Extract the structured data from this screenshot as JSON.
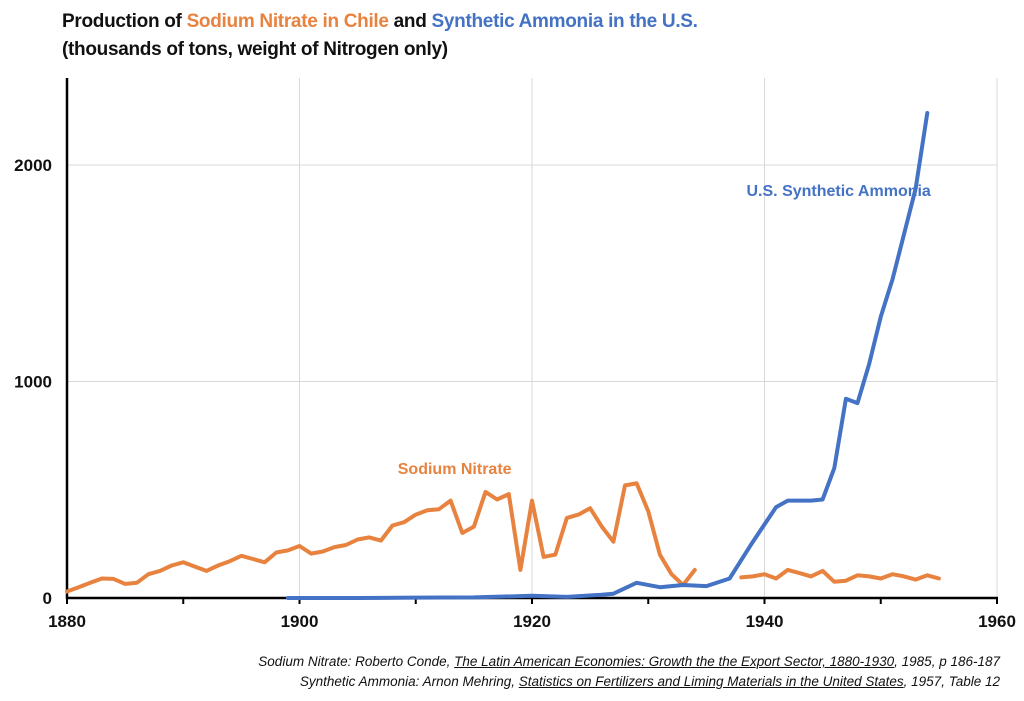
{
  "chart_data": {
    "type": "line",
    "title": {
      "prefix": "Production of ",
      "series1": "Sodium Nitrate in Chile",
      "middle": " and ",
      "series2": "Synthetic Ammonia in the U.S.",
      "subtitle": "(thousands of tons, weight of Nitrogen only)"
    },
    "xlabel": "",
    "ylabel": "",
    "xlim": [
      1880,
      1960
    ],
    "ylim": [
      0,
      2350
    ],
    "x_ticks": [
      1880,
      1900,
      1920,
      1940,
      1960
    ],
    "x_tick_labels": [
      "1880",
      "1900",
      "1920",
      "1940",
      "1960"
    ],
    "y_ticks": [
      0,
      1000,
      2000
    ],
    "y_tick_labels": [
      "0",
      "1000",
      "2000"
    ],
    "grid": true,
    "legend": "inline annotations",
    "series": [
      {
        "name": "Sodium Nitrate",
        "label": "Sodium Nitrate",
        "color": "#E8823F",
        "segments": [
          {
            "x": [
              1880,
              1881,
              1882,
              1883,
              1884,
              1885,
              1886,
              1887,
              1888,
              1889,
              1890,
              1891,
              1892,
              1893,
              1894,
              1895,
              1896,
              1897,
              1898,
              1899,
              1900,
              1901,
              1902,
              1903,
              1904,
              1905,
              1906,
              1907,
              1908,
              1909,
              1910,
              1911,
              1912,
              1913,
              1914,
              1915,
              1916,
              1917,
              1918,
              1919,
              1920,
              1921,
              1922,
              1923,
              1924,
              1925,
              1926,
              1927,
              1928,
              1929,
              1930,
              1931,
              1932,
              1933,
              1934
            ],
            "y": [
              30,
              50,
              70,
              90,
              88,
              65,
              70,
              110,
              125,
              150,
              165,
              145,
              125,
              150,
              170,
              195,
              180,
              165,
              210,
              220,
              240,
              205,
              215,
              235,
              245,
              270,
              280,
              265,
              335,
              350,
              385,
              405,
              410,
              450,
              300,
              330,
              490,
              455,
              480,
              130,
              450,
              190,
              200,
              370,
              385,
              415,
              330,
              260,
              520,
              530,
              400,
              200,
              110,
              60,
              130
            ]
          },
          {
            "x": [
              1938,
              1939,
              1940,
              1941,
              1942,
              1943,
              1944,
              1945,
              1946,
              1947,
              1948,
              1949,
              1950,
              1951,
              1952,
              1953,
              1954,
              1955
            ],
            "y": [
              95,
              100,
              110,
              90,
              130,
              115,
              100,
              125,
              75,
              80,
              105,
              100,
              90,
              110,
              100,
              85,
              105,
              90
            ]
          }
        ]
      },
      {
        "name": "U.S. Synthetic Ammonia",
        "label": "U.S. Synthetic Ammonia",
        "color": "#4472C4",
        "segments": [
          {
            "x": [
              1899,
              1905,
              1910,
              1915,
              1920,
              1923,
              1926,
              1927,
              1929,
              1931,
              1933,
              1935,
              1937,
              1939,
              1941,
              1942,
              1943,
              1944,
              1945,
              1946,
              1947,
              1948,
              1949,
              1950,
              1951,
              1952,
              1953,
              1954
            ],
            "y": [
              0,
              0,
              2,
              3,
              10,
              5,
              15,
              20,
              70,
              50,
              60,
              55,
              90,
              260,
              420,
              450,
              450,
              450,
              455,
              600,
              920,
              900,
              1080,
              1300,
              1470,
              1680,
              1890,
              2240
            ]
          }
        ]
      }
    ],
    "annotations": [
      {
        "text": "Sodium Nitrate",
        "series": "Sodium Nitrate",
        "anchor": [
          1910,
          600
        ]
      },
      {
        "text": "U.S. Synthetic Ammonia",
        "series": "U.S. Synthetic Ammonia",
        "anchor": [
          1940,
          1885
        ]
      }
    ]
  },
  "sources": {
    "line1": {
      "prefix": "Sodium Nitrate: Roberto Conde, ",
      "title": "The Latin American Economies: Growth the the Export Sector, 1880-1930",
      "suffix": ", 1985, p 186-187"
    },
    "line2": {
      "prefix": "Synthetic Ammonia: Arnon Mehring, ",
      "title": "Statistics on Fertilizers and Liming Materials in the United States",
      "suffix": ", 1957, Table 12"
    }
  }
}
